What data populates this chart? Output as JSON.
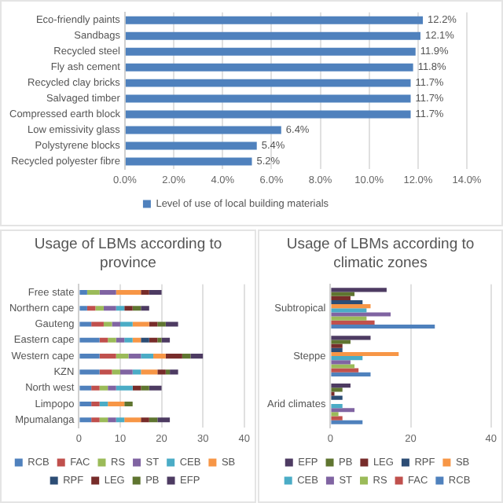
{
  "chart_data": [
    {
      "type": "bar",
      "orientation": "horizontal",
      "categories": [
        "Eco-friendly paints",
        "Sandbags",
        "Recycled steel",
        "Fly ash cement",
        "Recycled clay bricks",
        "Salvaged timber",
        "Compressed earth block",
        "Low emissivity glass",
        "Polystyrene blocks",
        "Recycled polyester fibre"
      ],
      "series": [
        {
          "name": "Level of use of local building materials",
          "color": "#4f81bd",
          "values": [
            12.2,
            12.1,
            11.9,
            11.8,
            11.7,
            11.7,
            11.7,
            6.4,
            5.4,
            5.2
          ],
          "value_labels": [
            "12.2%",
            "12.1%",
            "11.9%",
            "11.8%",
            "11.7%",
            "11.7%",
            "11.7%",
            "6.4%",
            "5.4%",
            "5.2%"
          ]
        }
      ],
      "xlim": [
        0,
        14
      ],
      "xticks": [
        {
          "value": 0,
          "label": "0.0%"
        },
        {
          "value": 2,
          "label": "2.0%"
        },
        {
          "value": 4,
          "label": "4.0%"
        },
        {
          "value": 6,
          "label": "6.0%"
        },
        {
          "value": 8,
          "label": "8.0%"
        },
        {
          "value": 10,
          "label": "10.0%"
        },
        {
          "value": 12,
          "label": "12.0%"
        },
        {
          "value": 14,
          "label": "14.0%"
        }
      ],
      "grid": "x",
      "legend": "bottom"
    },
    {
      "type": "bar",
      "orientation": "horizontal",
      "stacked": true,
      "title": "Usage of LBMs according to province",
      "categories": [
        "Free state",
        "Northern cape",
        "Gauteng",
        "Eastern cape",
        "Western cape",
        "KZN",
        "North west",
        "Limpopo",
        "Mpumalanga"
      ],
      "series": [
        {
          "name": "RCB",
          "color": "#4f81bd",
          "values": [
            2,
            2,
            3,
            5,
            5,
            5,
            3,
            3,
            3
          ]
        },
        {
          "name": "FAC",
          "color": "#c0504d",
          "values": [
            0,
            2,
            3,
            2,
            4,
            3,
            2,
            2,
            2
          ]
        },
        {
          "name": "RS",
          "color": "#9bbb59",
          "values": [
            3,
            2,
            2,
            2,
            3,
            2,
            2,
            0,
            2
          ]
        },
        {
          "name": "ST",
          "color": "#8064a2",
          "values": [
            4,
            3,
            2,
            2,
            3,
            3,
            2,
            0,
            2
          ]
        },
        {
          "name": "CEB",
          "color": "#4bacc6",
          "values": [
            0,
            2,
            3,
            2,
            3,
            2,
            4,
            2,
            2
          ]
        },
        {
          "name": "SB",
          "color": "#f79646",
          "values": [
            6,
            0,
            4,
            2,
            3,
            4,
            0,
            4,
            4
          ]
        },
        {
          "name": "RPF",
          "color": "#2c4d75",
          "values": [
            0,
            0,
            0,
            2,
            0,
            0,
            0,
            0,
            0
          ]
        },
        {
          "name": "LEG",
          "color": "#772c2a",
          "values": [
            2,
            2,
            2,
            2,
            4,
            2,
            2,
            0,
            2
          ]
        },
        {
          "name": "PB",
          "color": "#5f7530",
          "values": [
            0,
            2,
            2,
            1,
            2,
            1,
            2,
            2,
            2
          ]
        },
        {
          "name": "EFP",
          "color": "#4d3b62",
          "values": [
            3,
            2,
            3,
            2,
            3,
            2,
            3,
            0,
            3
          ]
        }
      ],
      "xlim": [
        0,
        40
      ],
      "xticks": [
        0,
        10,
        20,
        30,
        40
      ],
      "grid": "x",
      "legend": "bottom"
    },
    {
      "type": "bar",
      "orientation": "horizontal",
      "title": "Usage of LBMs according to climatic zones",
      "categories": [
        "Subtropical",
        "Steppe",
        "Arid climates"
      ],
      "series": [
        {
          "name": "EFP",
          "color": "#4d3b62",
          "values": [
            14,
            10,
            5
          ]
        },
        {
          "name": "PB",
          "color": "#5f7530",
          "values": [
            6,
            5,
            3
          ]
        },
        {
          "name": "LEG",
          "color": "#772c2a",
          "values": [
            5,
            3,
            1
          ]
        },
        {
          "name": "RPF",
          "color": "#2c4d75",
          "values": [
            8,
            3,
            3
          ]
        },
        {
          "name": "SB",
          "color": "#f79646",
          "values": [
            10,
            17,
            0
          ]
        },
        {
          "name": "CEB",
          "color": "#4bacc6",
          "values": [
            9,
            8,
            3
          ]
        },
        {
          "name": "ST",
          "color": "#8064a2",
          "values": [
            15,
            5,
            6
          ]
        },
        {
          "name": "RS",
          "color": "#9bbb59",
          "values": [
            9,
            6,
            2
          ]
        },
        {
          "name": "FAC",
          "color": "#c0504d",
          "values": [
            11,
            7,
            3
          ]
        },
        {
          "name": "RCB",
          "color": "#4f81bd",
          "values": [
            26,
            10,
            8
          ]
        }
      ],
      "xlim": [
        0,
        40
      ],
      "xticks": [
        0,
        20,
        40
      ],
      "grid": "x",
      "legend": "bottom"
    }
  ]
}
